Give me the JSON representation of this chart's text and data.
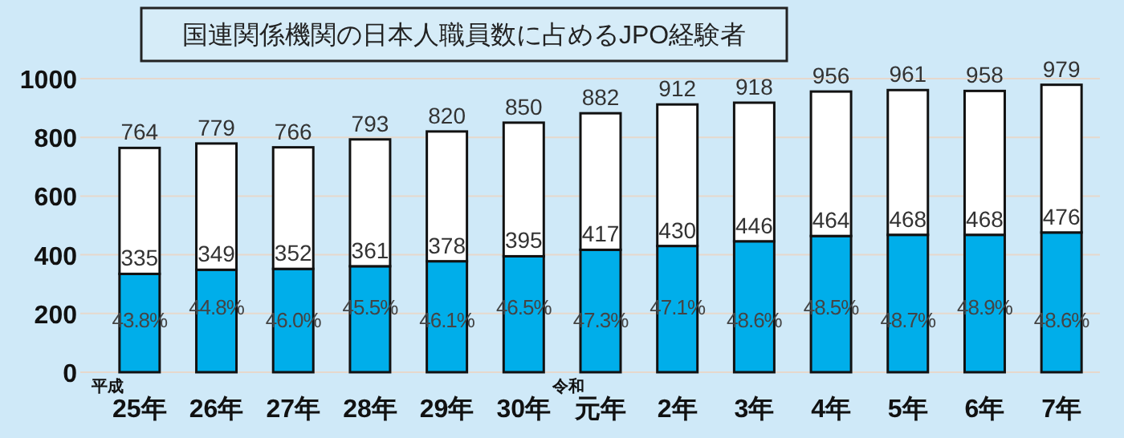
{
  "chart_data": {
    "type": "bar",
    "stacked": true,
    "title": "国連関係機関の日本人職員数に占めるJPO経験者",
    "categories": [
      "平成25年",
      "26年",
      "27年",
      "28年",
      "29年",
      "30年",
      "令和元年",
      "2年",
      "3年",
      "4年",
      "5年",
      "6年",
      "7年"
    ],
    "series": [
      {
        "color": "#00aeea",
        "values": [
          335,
          349,
          352,
          361,
          378,
          395,
          417,
          430,
          446,
          464,
          468,
          468,
          476
        ],
        "value_labels": [
          "335",
          "349",
          "352",
          "361",
          "378",
          "395",
          "417",
          "430",
          "446",
          "464",
          "468",
          "468",
          "476"
        ]
      },
      {
        "color": "#ffffff",
        "values": [
          429,
          430,
          414,
          432,
          442,
          455,
          465,
          482,
          472,
          492,
          493,
          490,
          503
        ]
      }
    ],
    "totals": [
      "764",
      "779",
      "766",
      "793",
      "820",
      "850",
      "882",
      "912",
      "918",
      "956",
      "961",
      "958",
      "979"
    ],
    "annotations": [
      "43.8%",
      "44.8%",
      "46.0%",
      "45.5%",
      "46.1%",
      "46.5%",
      "47.3%",
      "47.1%",
      "48.6%",
      "48.5%",
      "48.7%",
      "48.9%",
      "48.6%"
    ],
    "ylim": [
      0,
      1000
    ],
    "yticks": [
      0,
      200,
      400,
      600,
      800,
      1000
    ],
    "grid": "y"
  }
}
